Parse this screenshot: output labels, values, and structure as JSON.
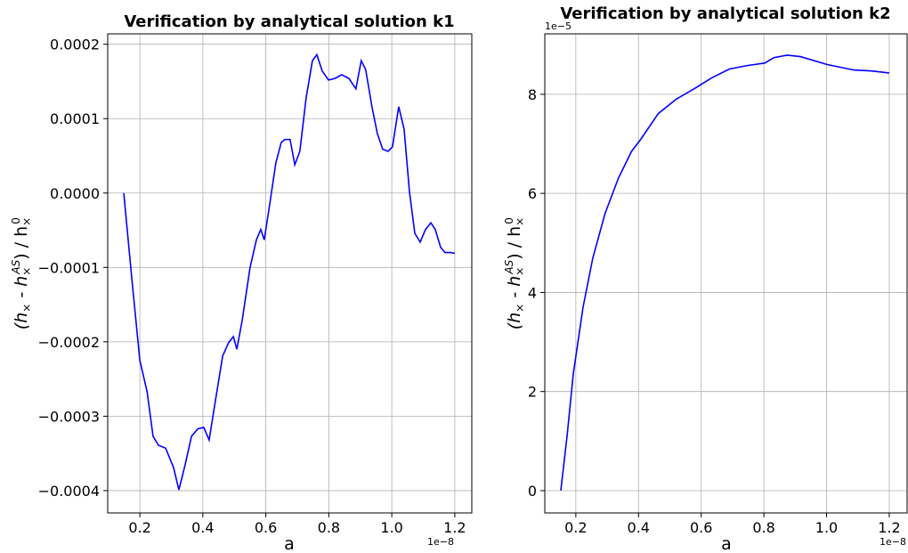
{
  "chart_data": [
    {
      "type": "line",
      "title": "Verification by analytical solution k1",
      "xlabel": "a",
      "ylabel": [
        "(h",
        "×",
        " - h",
        "×",
        "AS",
        ") / h",
        "×",
        "0"
      ],
      "x_offset_label": "1e−8",
      "color": "#0000ff",
      "grid": true,
      "xlim": [
        0.098,
        1.254
      ],
      "xticks": [
        0.2,
        0.4,
        0.6,
        0.8,
        {
          "value": 1.0,
          "label": "1.0"
        },
        1.2
      ],
      "ylim": [
        -0.00043,
        0.000214
      ],
      "yticks": [
        {
          "value": -0.0004,
          "label": "−0.0004"
        },
        {
          "value": -0.0003,
          "label": "−0.0003"
        },
        {
          "value": -0.0002,
          "label": "−0.0002"
        },
        {
          "value": -0.0001,
          "label": "−0.0001"
        },
        {
          "value": 0,
          "label": "0.0000"
        },
        0.0001,
        0.0002
      ],
      "x": [
        0.149,
        0.175,
        0.2,
        0.223,
        0.242,
        0.259,
        0.282,
        0.307,
        0.324,
        0.344,
        0.364,
        0.384,
        0.403,
        0.42,
        0.44,
        0.463,
        0.482,
        0.497,
        0.508,
        0.525,
        0.55,
        0.57,
        0.584,
        0.595,
        0.612,
        0.632,
        0.649,
        0.66,
        0.677,
        0.692,
        0.708,
        0.728,
        0.748,
        0.762,
        0.779,
        0.799,
        0.819,
        0.841,
        0.864,
        0.886,
        0.903,
        0.917,
        0.937,
        0.954,
        0.971,
        0.988,
        1.002,
        1.022,
        1.039,
        1.056,
        1.073,
        1.09,
        1.107,
        1.124,
        1.138,
        1.155,
        1.169,
        1.186,
        1.2
      ],
      "values": [
        0,
        -0.000117,
        -0.000225,
        -0.000267,
        -0.000327,
        -0.000339,
        -0.000343,
        -0.000369,
        -0.000399,
        -0.000365,
        -0.000327,
        -0.000317,
        -0.000315,
        -0.000332,
        -0.000279,
        -0.000219,
        -0.000201,
        -0.000193,
        -0.00021,
        -0.000171,
        -0.0001,
        -6.3e-05,
        -4.9e-05,
        -6.3e-05,
        -1.6e-05,
        4.1e-05,
        6.8e-05,
        7.2e-05,
        7.2e-05,
        3.8e-05,
        5.6e-05,
        0.000128,
        0.000178,
        0.000186,
        0.000164,
        0.000152,
        0.000154,
        0.000159,
        0.000154,
        0.00014,
        0.000178,
        0.000166,
        0.000116,
        8e-05,
        5.9e-05,
        5.6e-05,
        6.2e-05,
        0.000116,
        8.6e-05,
        2e-06,
        -5.4e-05,
        -6.6e-05,
        -4.9e-05,
        -4e-05,
        -4.9e-05,
        -7.3e-05,
        -8e-05,
        -8e-05,
        -8.1e-05
      ]
    },
    {
      "type": "line",
      "title": "Verification by analytical solution k2",
      "xlabel": "a",
      "ylabel": [
        "(h",
        "×",
        " - h",
        "×",
        "AS",
        ") / h",
        "×",
        "0"
      ],
      "x_offset_label": "1e−8",
      "y_offset_label": "1e−5",
      "color": "#0000ff",
      "grid": true,
      "xlim": [
        0.101,
        1.257
      ],
      "xticks": [
        0.2,
        0.4,
        0.6,
        0.8,
        {
          "value": 1.0,
          "label": "1.0"
        },
        1.2
      ],
      "ylim": [
        -0.45,
        9.22
      ],
      "yticks": [
        0,
        2,
        4,
        6,
        8
      ],
      "x": [
        0.152,
        0.172,
        0.192,
        0.223,
        0.254,
        0.293,
        0.336,
        0.378,
        0.407,
        0.463,
        0.52,
        0.577,
        0.633,
        0.69,
        0.747,
        0.803,
        0.832,
        0.874,
        0.917,
        1.002,
        1.087,
        1.144,
        1.2
      ],
      "values": [
        0,
        1.1,
        2.36,
        3.7,
        4.69,
        5.59,
        6.31,
        6.85,
        7.09,
        7.61,
        7.9,
        8.11,
        8.33,
        8.51,
        8.58,
        8.63,
        8.74,
        8.79,
        8.76,
        8.6,
        8.49,
        8.47,
        8.43
      ]
    }
  ]
}
